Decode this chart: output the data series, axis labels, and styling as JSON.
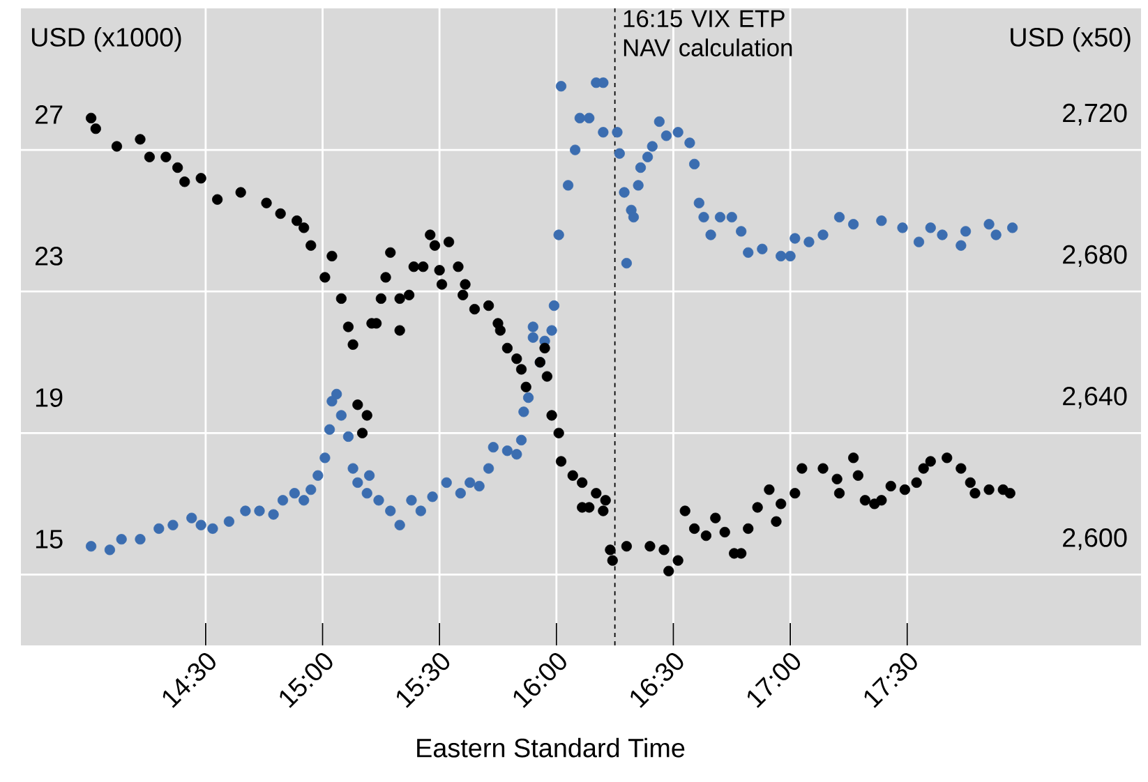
{
  "chart_data": {
    "type": "scatter",
    "xlabel": "Eastern Standard Time",
    "ylabel": "USD (x1000)",
    "y2label": "USD (x50)",
    "marker": "circle",
    "grid": true,
    "xlim": [
      13.71,
      18.5
    ],
    "xticks": [
      {
        "value": 14.5,
        "label": "14:30"
      },
      {
        "value": 15,
        "label": "15:00"
      },
      {
        "value": 15.5,
        "label": "15:30"
      },
      {
        "value": 16,
        "label": "16:00"
      },
      {
        "value": 16.5,
        "label": "16:30"
      },
      {
        "value": 17,
        "label": "17:00"
      },
      {
        "value": 17.5,
        "label": "17:30"
      }
    ],
    "ylim": [
      12,
      30
    ],
    "yticks": [
      {
        "value": 14,
        "label": null
      },
      15,
      {
        "value": 18,
        "label": null
      },
      19,
      {
        "value": 22,
        "label": null
      },
      23,
      {
        "value": 26,
        "label": null
      },
      27
    ],
    "y2lim": [
      2570,
      2750
    ],
    "y2ticks": [
      {
        "value": 2600,
        "label": "2,600"
      },
      {
        "value": 2640,
        "label": "2,640"
      },
      {
        "value": 2680,
        "label": "2,680"
      },
      {
        "value": 2720,
        "label": "2,720"
      }
    ],
    "ref_lines": [
      {
        "axis": "x",
        "value": 16.25,
        "label": "16:15 VIX ETP NAV calculation",
        "color": "#000000",
        "line_style": "dashed"
      }
    ],
    "series": [
      {
        "color": "#3b6db0",
        "axis": "y",
        "x": [
          14.01,
          14.09,
          14.14,
          14.22,
          14.3,
          14.36,
          14.44,
          14.48,
          14.53,
          14.6,
          14.67,
          14.73,
          14.79,
          14.83,
          14.88,
          14.92,
          14.95,
          14.98,
          15.01,
          15.03,
          15.04,
          15.06,
          15.08,
          15.11,
          15.13,
          15.15,
          15.19,
          15.2,
          15.24,
          15.29,
          15.33,
          15.38,
          15.42,
          15.47,
          15.53,
          15.59,
          15.63,
          15.67,
          15.71,
          15.73,
          15.79,
          15.83,
          15.85,
          15.86,
          15.88,
          15.9,
          15.9,
          15.93,
          15.95,
          15.98,
          15.99,
          16.01,
          16.02,
          16.05,
          16.08,
          16.1,
          16.14,
          16.17,
          16.2,
          16.2,
          16.26,
          16.27,
          16.29,
          16.3,
          16.32,
          16.33,
          16.35,
          16.36,
          16.39,
          16.41,
          16.44,
          16.47,
          16.52,
          16.57,
          16.59,
          16.61,
          16.63,
          16.66,
          16.7,
          16.75,
          16.79,
          16.82,
          16.88,
          16.96,
          17.0,
          17.02,
          17.08,
          17.14,
          17.21,
          17.27,
          17.39,
          17.48,
          17.55,
          17.6,
          17.65,
          17.73,
          17.75,
          17.85,
          17.88,
          17.95
        ],
        "values": [
          14.8,
          14.7,
          15.0,
          15.0,
          15.3,
          15.4,
          15.6,
          15.4,
          15.3,
          15.5,
          15.8,
          15.8,
          15.7,
          16.1,
          16.3,
          16.1,
          16.4,
          16.8,
          17.3,
          18.1,
          18.9,
          19.1,
          18.5,
          17.9,
          17.0,
          16.6,
          16.3,
          16.8,
          16.1,
          15.8,
          15.4,
          16.1,
          15.8,
          16.2,
          16.6,
          16.3,
          16.6,
          16.5,
          17.0,
          17.6,
          17.5,
          17.4,
          17.8,
          18.6,
          19.0,
          21.0,
          20.7,
          20.0,
          20.6,
          20.9,
          21.6,
          23.6,
          27.8,
          25.0,
          26.0,
          26.9,
          26.9,
          27.9,
          27.9,
          26.5,
          26.5,
          25.9,
          24.8,
          22.8,
          24.3,
          24.1,
          25.0,
          25.5,
          25.8,
          26.1,
          26.8,
          26.4,
          26.5,
          26.2,
          25.6,
          24.5,
          24.1,
          23.6,
          24.1,
          24.1,
          23.7,
          23.1,
          23.2,
          23.0,
          23.0,
          23.5,
          23.4,
          23.6,
          24.1,
          23.9,
          24.0,
          23.8,
          23.4,
          23.8,
          23.6,
          23.3,
          23.7,
          23.9,
          23.6,
          23.8
        ]
      },
      {
        "color": "#000000",
        "axis": "y2",
        "x": [
          14.01,
          14.03,
          14.12,
          14.22,
          14.26,
          14.33,
          14.38,
          14.41,
          14.48,
          14.55,
          14.65,
          14.76,
          14.82,
          14.89,
          14.92,
          14.95,
          15.01,
          15.04,
          15.08,
          15.11,
          15.13,
          15.15,
          15.17,
          15.19,
          15.21,
          15.23,
          15.25,
          15.27,
          15.29,
          15.33,
          15.33,
          15.37,
          15.39,
          15.43,
          15.46,
          15.48,
          15.5,
          15.51,
          15.54,
          15.58,
          15.6,
          15.61,
          15.65,
          15.71,
          15.75,
          15.76,
          15.79,
          15.83,
          15.85,
          15.87,
          15.93,
          15.95,
          15.96,
          15.98,
          16.01,
          16.02,
          16.07,
          16.11,
          16.11,
          16.14,
          16.17,
          16.2,
          16.21,
          16.23,
          16.24,
          16.3,
          16.4,
          16.46,
          16.48,
          16.52,
          16.55,
          16.59,
          16.64,
          16.68,
          16.72,
          16.76,
          16.79,
          16.82,
          16.86,
          16.91,
          16.94,
          16.96,
          17.02,
          17.05,
          17.14,
          17.2,
          17.21,
          17.27,
          17.29,
          17.32,
          17.36,
          17.39,
          17.43,
          17.49,
          17.54,
          17.57,
          17.6,
          17.67,
          17.73,
          17.77,
          17.79,
          17.85,
          17.91,
          17.94
        ],
        "values": [
          2719,
          2716,
          2711,
          2713,
          2708,
          2708,
          2705,
          2701,
          2702,
          2696,
          2698,
          2695,
          2692,
          2690,
          2688,
          2683,
          2674,
          2680,
          2668,
          2660,
          2655,
          2638,
          2630,
          2635,
          2661,
          2661,
          2668,
          2674,
          2681,
          2668,
          2659,
          2669,
          2677,
          2677,
          2686,
          2683,
          2676,
          2672,
          2684,
          2677,
          2669,
          2672,
          2665,
          2666,
          2661,
          2659,
          2654,
          2651,
          2648,
          2643,
          2650,
          2654,
          2646,
          2635,
          2630,
          2622,
          2618,
          2616,
          2609,
          2609,
          2613,
          2608,
          2611,
          2597,
          2594,
          2598,
          2598,
          2597,
          2591,
          2594,
          2608,
          2603,
          2601,
          2606,
          2602,
          2596,
          2596,
          2603,
          2609,
          2614,
          2605,
          2610,
          2613,
          2620,
          2620,
          2617,
          2613,
          2623,
          2618,
          2611,
          2610,
          2611,
          2615,
          2614,
          2616,
          2620,
          2622,
          2623,
          2620,
          2616,
          2613,
          2614,
          2614,
          2613
        ]
      }
    ]
  }
}
